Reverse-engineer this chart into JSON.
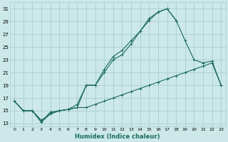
{
  "xlabel": "Humidex (Indice chaleur)",
  "bg_color": "#cce8e8",
  "line_color": "#1a6b5a",
  "grid_color": "#aacece",
  "xlim": [
    -0.5,
    23.5
  ],
  "ylim": [
    12.5,
    32.0
  ],
  "yticks": [
    13,
    15,
    17,
    19,
    21,
    23,
    25,
    27,
    29,
    31
  ],
  "xticks": [
    0,
    1,
    2,
    3,
    4,
    5,
    6,
    7,
    8,
    9,
    10,
    11,
    12,
    13,
    14,
    15,
    16,
    17,
    18,
    19,
    20,
    21,
    22,
    23
  ],
  "series": [
    {
      "x": [
        0,
        1,
        2,
        3,
        4,
        5,
        6,
        7,
        8,
        9,
        10,
        11,
        12,
        13,
        14,
        15,
        16,
        17,
        18,
        19,
        20,
        21,
        22,
        23
      ],
      "y": [
        16.5,
        15,
        15,
        13.2,
        14.5,
        15,
        15.2,
        16.0,
        19.0,
        19.0,
        21.0,
        23.0,
        23.8,
        25.5,
        27.5,
        29.2,
        30.5,
        31.0,
        29.2,
        null,
        null,
        null,
        null,
        null
      ]
    },
    {
      "x": [
        0,
        1,
        2,
        3,
        4,
        5,
        6,
        7,
        8,
        9,
        10,
        11,
        12,
        13,
        14,
        15,
        16,
        17,
        18,
        19,
        20,
        21,
        22,
        23
      ],
      "y": [
        16.5,
        15,
        15,
        13.2,
        14.8,
        15,
        15.2,
        15.5,
        19.0,
        19.0,
        21.5,
        23.5,
        24.5,
        26.0,
        27.5,
        29.5,
        30.5,
        31.0,
        29.2,
        26.0,
        23.0,
        22.5,
        22.8,
        19.0
      ]
    },
    {
      "x": [
        0,
        1,
        2,
        3,
        4,
        5,
        6,
        7,
        8,
        9,
        10,
        11,
        12,
        13,
        14,
        15,
        16,
        17,
        18,
        19,
        20,
        21,
        22,
        23
      ],
      "y": [
        16.5,
        15,
        15,
        13.5,
        14.5,
        15,
        15.2,
        15.5,
        15.5,
        16.0,
        16.5,
        17.0,
        17.5,
        18.0,
        18.5,
        19.0,
        19.5,
        20.0,
        20.5,
        21.0,
        21.5,
        22.0,
        22.5,
        19.0
      ]
    }
  ]
}
